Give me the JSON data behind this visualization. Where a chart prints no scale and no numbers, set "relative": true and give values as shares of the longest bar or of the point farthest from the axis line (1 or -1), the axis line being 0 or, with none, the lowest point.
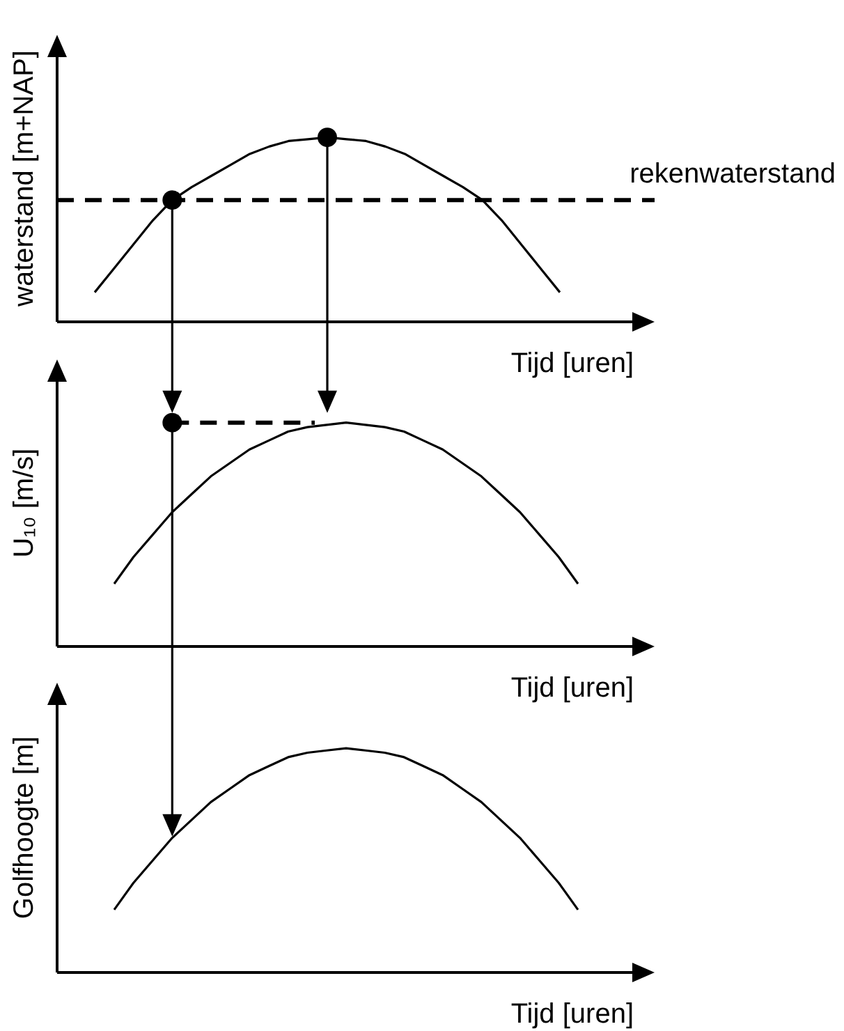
{
  "chart_data": [
    {
      "type": "line",
      "ylabel": "waterstand [m+NAP]",
      "xlabel": "Tijd [uren]",
      "relative": true,
      "tick_labels": false,
      "line_style": "solid",
      "categories": [
        null,
        null,
        null,
        null,
        null,
        null,
        null,
        null,
        null,
        null,
        null,
        null,
        null,
        null,
        null,
        null,
        null,
        null,
        null,
        null,
        null,
        null,
        null,
        null,
        null
      ],
      "series": [
        {
          "color": "#000000",
          "values": [
            0.16,
            0.29,
            0.42,
            0.55,
            0.66,
            0.73,
            0.79,
            0.85,
            0.91,
            0.95,
            0.98,
            0.99,
            1,
            0.99,
            0.98,
            0.95,
            0.91,
            0.85,
            0.79,
            0.73,
            0.66,
            0.55,
            0.42,
            0.29,
            0.16
          ]
        }
      ],
      "ref_lines": [
        {
          "axis": "y",
          "value": 0.66,
          "label": "rekenwaterstand",
          "color": "#000000",
          "line_style": "dashed"
        }
      ]
    },
    {
      "type": "line",
      "ylabel": "U₁₀ [m/s]",
      "xlabel": "Tijd [uren]",
      "relative": true,
      "tick_labels": false,
      "line_style": "solid",
      "categories": [
        null,
        null,
        null,
        null,
        null,
        null,
        null,
        null,
        null,
        null,
        null,
        null,
        null,
        null,
        null,
        null,
        null,
        null,
        null,
        null,
        null,
        null,
        null,
        null,
        null
      ],
      "series": [
        {
          "color": "#000000",
          "values": [
            0.28,
            0.4,
            0.5,
            0.6,
            0.68,
            0.76,
            0.82,
            0.88,
            0.92,
            0.96,
            0.98,
            0.99,
            1,
            0.99,
            0.98,
            0.96,
            0.92,
            0.88,
            0.82,
            0.76,
            0.68,
            0.6,
            0.5,
            0.4,
            0.28
          ]
        }
      ]
    },
    {
      "type": "line",
      "ylabel": "Golfhoogte [m]",
      "xlabel": "Tijd [uren]",
      "relative": true,
      "tick_labels": false,
      "line_style": "solid",
      "categories": [
        null,
        null,
        null,
        null,
        null,
        null,
        null,
        null,
        null,
        null,
        null,
        null,
        null,
        null,
        null,
        null,
        null,
        null,
        null,
        null,
        null,
        null,
        null,
        null,
        null
      ],
      "series": [
        {
          "color": "#000000",
          "values": [
            0.28,
            0.4,
            0.5,
            0.6,
            0.68,
            0.76,
            0.82,
            0.88,
            0.92,
            0.96,
            0.98,
            0.99,
            1,
            0.99,
            0.98,
            0.96,
            0.92,
            0.88,
            0.82,
            0.76,
            0.68,
            0.6,
            0.5,
            0.4,
            0.28
          ]
        }
      ]
    }
  ]
}
